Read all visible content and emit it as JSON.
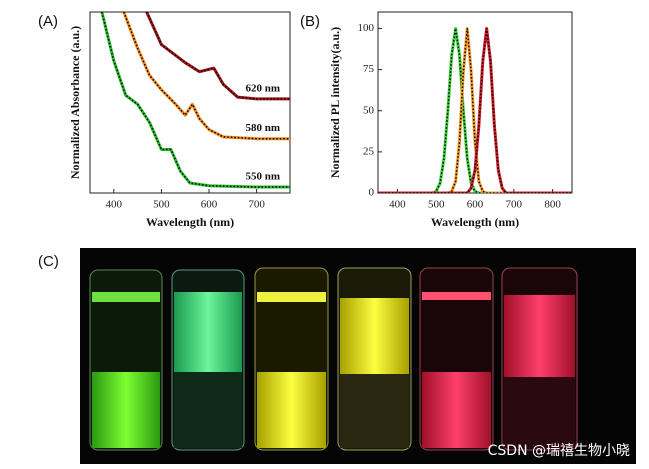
{
  "panels": {
    "a": "(A)",
    "b": "(B)",
    "c": "(C)"
  },
  "watermark": "CSDN @瑞禧生物小晓",
  "chart_data": [
    {
      "type": "line",
      "xlabel": "Wavelength (nm)",
      "ylabel": "Normalized Absorbance (a.u.)",
      "xlim": [
        350,
        770
      ],
      "xticks": [
        400,
        500,
        600,
        700
      ],
      "ylim": [
        0,
        1
      ],
      "annotations": [
        "620 nm",
        "580 nm",
        "550 nm"
      ],
      "series": [
        {
          "color": "#a01818",
          "x": [
            469,
            500,
            550,
            580,
            610,
            630,
            660,
            700,
            770
          ],
          "values": [
            1.0,
            0.82,
            0.72,
            0.67,
            0.69,
            0.6,
            0.53,
            0.52,
            0.52
          ]
        },
        {
          "color": "#f08a1e",
          "x": [
            421,
            450,
            475,
            500,
            530,
            550,
            565,
            580,
            600,
            630,
            700,
            770
          ],
          "values": [
            1.0,
            0.8,
            0.65,
            0.57,
            0.49,
            0.43,
            0.49,
            0.41,
            0.35,
            0.31,
            0.3,
            0.3
          ]
        },
        {
          "color": "#2dbb2d",
          "x": [
            375,
            400,
            425,
            450,
            475,
            500,
            520,
            540,
            560,
            600,
            700,
            770
          ],
          "values": [
            1.0,
            0.73,
            0.54,
            0.49,
            0.39,
            0.24,
            0.24,
            0.12,
            0.055,
            0.04,
            0.033,
            0.033
          ]
        }
      ]
    },
    {
      "type": "line",
      "xlabel": "Wavelength (nm)",
      "ylabel": "Normalized PL intensity(a.u.)",
      "xlim": [
        350,
        850
      ],
      "xticks": [
        400,
        500,
        600,
        700,
        800
      ],
      "ylim": [
        0,
        110
      ],
      "yticks": [
        0,
        25,
        50,
        75,
        100
      ],
      "x": [
        350,
        400,
        450,
        460,
        470,
        480,
        490,
        500,
        510,
        520,
        530,
        540,
        550,
        560,
        570,
        580,
        590,
        600,
        610,
        620,
        630,
        640,
        650,
        660,
        670,
        680,
        690,
        700,
        750,
        800,
        850
      ],
      "series": [
        {
          "color": "#3ad13a",
          "values": [
            0,
            0,
            0,
            0,
            0,
            0,
            0,
            1,
            6,
            21,
            50,
            84,
            100,
            84,
            50,
            21,
            6,
            1,
            0,
            0,
            0,
            0,
            0,
            0,
            0,
            0,
            0,
            0,
            0,
            0,
            0
          ]
        },
        {
          "color": "#f39a2a",
          "values": [
            0,
            0,
            0,
            0,
            0,
            0,
            0,
            0,
            0,
            0,
            0,
            1,
            7,
            31,
            74,
            100,
            74,
            31,
            7,
            1,
            0,
            0,
            0,
            0,
            0,
            0,
            0,
            0,
            0,
            0,
            0
          ]
        },
        {
          "color": "#d0202a",
          "values": [
            0,
            0,
            0,
            0,
            0,
            0,
            0,
            0,
            0,
            0,
            0,
            0,
            0,
            0,
            0,
            0,
            3,
            14,
            41,
            80,
            100,
            80,
            41,
            14,
            3,
            0,
            0,
            0,
            0,
            0,
            0
          ]
        }
      ]
    }
  ]
}
